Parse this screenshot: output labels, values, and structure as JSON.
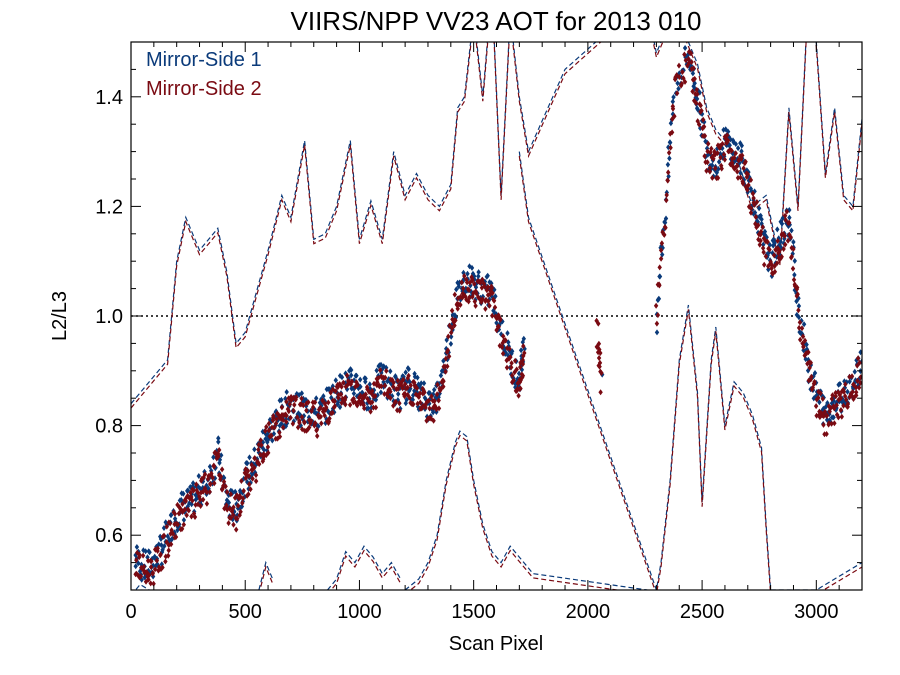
{
  "chart_data": {
    "type": "scatter",
    "title": "VIIRS/NPP VV23 AOT for 2013 010",
    "xlabel": "Scan Pixel",
    "ylabel": "L2/L3",
    "xlim": [
      0,
      3200
    ],
    "ylim": [
      0.5,
      1.5
    ],
    "x_ticks": [
      0,
      500,
      1000,
      1500,
      2000,
      2500,
      3000
    ],
    "y_ticks": [
      0.6,
      0.8,
      1.0,
      1.2,
      1.4
    ],
    "x_tick_labels": [
      "0",
      "500",
      "1000",
      "1500",
      "2000",
      "2500",
      "3000"
    ],
    "y_tick_labels": [
      "0.6",
      "0.8",
      "1.0",
      "1.2",
      "1.4"
    ],
    "reference_line": {
      "y": 1.0,
      "style": "dotted"
    },
    "legend_position": "top-left",
    "grid": false,
    "series": [
      {
        "name": "Mirror-Side 1",
        "color": "#0a3a7a",
        "points": [
          [
            20,
            0.56
          ],
          [
            60,
            0.54
          ],
          [
            100,
            0.55
          ],
          [
            140,
            0.58
          ],
          [
            180,
            0.62
          ],
          [
            220,
            0.65
          ],
          [
            260,
            0.66
          ],
          [
            300,
            0.68
          ],
          [
            340,
            0.7
          ],
          [
            380,
            0.75
          ],
          [
            420,
            0.66
          ],
          [
            460,
            0.65
          ],
          [
            500,
            0.7
          ],
          [
            540,
            0.73
          ],
          [
            580,
            0.77
          ],
          [
            620,
            0.8
          ],
          [
            660,
            0.82
          ],
          [
            700,
            0.84
          ],
          [
            740,
            0.83
          ],
          [
            780,
            0.83
          ],
          [
            820,
            0.82
          ],
          [
            860,
            0.84
          ],
          [
            900,
            0.86
          ],
          [
            940,
            0.87
          ],
          [
            980,
            0.88
          ],
          [
            1020,
            0.86
          ],
          [
            1060,
            0.86
          ],
          [
            1100,
            0.89
          ],
          [
            1140,
            0.87
          ],
          [
            1180,
            0.86
          ],
          [
            1220,
            0.88
          ],
          [
            1260,
            0.86
          ],
          [
            1300,
            0.84
          ],
          [
            1340,
            0.85
          ],
          [
            1380,
            0.93
          ],
          [
            1420,
            1.02
          ],
          [
            1460,
            1.07
          ],
          [
            1500,
            1.06
          ],
          [
            1540,
            1.05
          ],
          [
            1580,
            1.04
          ],
          [
            1620,
            0.98
          ],
          [
            1660,
            0.92
          ],
          [
            1700,
            0.88
          ],
          [
            1720,
            0.95
          ],
          [
            2060,
            0.9
          ],
          [
            2300,
            1.0
          ],
          [
            2340,
            1.2
          ],
          [
            2380,
            1.42
          ],
          [
            2440,
            1.48
          ],
          [
            2480,
            1.4
          ],
          [
            2520,
            1.3
          ],
          [
            2560,
            1.28
          ],
          [
            2600,
            1.32
          ],
          [
            2640,
            1.3
          ],
          [
            2680,
            1.28
          ],
          [
            2720,
            1.22
          ],
          [
            2760,
            1.15
          ],
          [
            2800,
            1.1
          ],
          [
            2840,
            1.14
          ],
          [
            2880,
            1.18
          ],
          [
            2920,
            1.02
          ],
          [
            2960,
            0.92
          ],
          [
            3000,
            0.86
          ],
          [
            3040,
            0.82
          ],
          [
            3080,
            0.84
          ],
          [
            3120,
            0.86
          ],
          [
            3160,
            0.88
          ],
          [
            3200,
            0.92
          ]
        ]
      },
      {
        "name": "Mirror-Side 2",
        "color": "#7a0a12",
        "points": [
          [
            20,
            0.55
          ],
          [
            60,
            0.53
          ],
          [
            100,
            0.54
          ],
          [
            140,
            0.57
          ],
          [
            180,
            0.61
          ],
          [
            220,
            0.64
          ],
          [
            260,
            0.65
          ],
          [
            300,
            0.67
          ],
          [
            340,
            0.69
          ],
          [
            380,
            0.74
          ],
          [
            420,
            0.65
          ],
          [
            460,
            0.64
          ],
          [
            500,
            0.69
          ],
          [
            540,
            0.72
          ],
          [
            580,
            0.76
          ],
          [
            620,
            0.79
          ],
          [
            660,
            0.81
          ],
          [
            700,
            0.83
          ],
          [
            740,
            0.82
          ],
          [
            780,
            0.82
          ],
          [
            820,
            0.81
          ],
          [
            860,
            0.83
          ],
          [
            900,
            0.85
          ],
          [
            940,
            0.86
          ],
          [
            980,
            0.87
          ],
          [
            1020,
            0.85
          ],
          [
            1060,
            0.85
          ],
          [
            1100,
            0.88
          ],
          [
            1140,
            0.86
          ],
          [
            1180,
            0.85
          ],
          [
            1220,
            0.87
          ],
          [
            1260,
            0.85
          ],
          [
            1300,
            0.83
          ],
          [
            1340,
            0.84
          ],
          [
            1380,
            0.92
          ],
          [
            1420,
            1.01
          ],
          [
            1460,
            1.06
          ],
          [
            1500,
            1.05
          ],
          [
            1540,
            1.04
          ],
          [
            1580,
            1.03
          ],
          [
            1620,
            0.97
          ],
          [
            1660,
            0.91
          ],
          [
            1700,
            0.87
          ],
          [
            1720,
            0.94
          ],
          [
            2040,
            0.97
          ],
          [
            2060,
            0.88
          ],
          [
            2300,
            0.99
          ],
          [
            2340,
            1.19
          ],
          [
            2380,
            1.41
          ],
          [
            2440,
            1.47
          ],
          [
            2480,
            1.39
          ],
          [
            2520,
            1.29
          ],
          [
            2560,
            1.27
          ],
          [
            2600,
            1.31
          ],
          [
            2640,
            1.29
          ],
          [
            2680,
            1.27
          ],
          [
            2720,
            1.21
          ],
          [
            2760,
            1.14
          ],
          [
            2800,
            1.09
          ],
          [
            2840,
            1.13
          ],
          [
            2880,
            1.17
          ],
          [
            2920,
            1.01
          ],
          [
            2960,
            0.91
          ],
          [
            3000,
            0.85
          ],
          [
            3040,
            0.81
          ],
          [
            3080,
            0.83
          ],
          [
            3120,
            0.85
          ],
          [
            3160,
            0.87
          ],
          [
            3200,
            0.91
          ]
        ]
      }
    ],
    "envelope_lines": [
      {
        "name": "upper",
        "x": [
          0,
          80,
          160,
          200,
          240,
          300,
          340,
          380,
          420,
          460,
          500,
          560,
          600,
          660,
          700,
          760,
          800,
          850,
          900,
          960,
          1000,
          1050,
          1100,
          1150,
          1200,
          1250,
          1300,
          1350,
          1400,
          1430,
          1460,
          1500,
          1540,
          1580,
          1620,
          1660,
          1700,
          1740,
          1900,
          2250,
          2300,
          2380,
          2440,
          2480,
          2520,
          2560,
          2600,
          2660,
          2720,
          2780,
          2840,
          2880,
          2920,
          2960,
          3000,
          3040,
          3080,
          3120,
          3160,
          3200
        ],
        "y": [
          0.84,
          0.88,
          0.92,
          1.1,
          1.18,
          1.12,
          1.14,
          1.16,
          1.08,
          0.95,
          0.97,
          1.06,
          1.12,
          1.22,
          1.18,
          1.32,
          1.14,
          1.15,
          1.2,
          1.32,
          1.14,
          1.21,
          1.14,
          1.3,
          1.22,
          1.26,
          1.22,
          1.2,
          1.24,
          1.38,
          1.4,
          1.55,
          1.4,
          1.6,
          1.22,
          1.55,
          1.4,
          1.3,
          1.45,
          1.58,
          1.48,
          1.56,
          1.5,
          1.46,
          1.38,
          1.34,
          1.32,
          1.28,
          1.2,
          1.22,
          1.1,
          1.38,
          1.2,
          1.55,
          1.5,
          1.26,
          1.38,
          1.22,
          1.2,
          1.36
        ]
      },
      {
        "name": "lower",
        "x": [
          1700,
          1740,
          2300,
          2320,
          2360,
          2400,
          2440,
          2480,
          2500,
          2540,
          2560,
          2600,
          2640,
          2680,
          2720,
          2760,
          2780,
          2800,
          2900,
          3000,
          3200
        ],
        "y": [
          1.3,
          1.18,
          0.5,
          0.55,
          0.7,
          0.92,
          1.02,
          0.86,
          0.66,
          0.92,
          0.98,
          0.8,
          0.88,
          0.86,
          0.82,
          0.76,
          0.62,
          0.5,
          0.5,
          0.5,
          0.55
        ]
      },
      {
        "name": "bottom",
        "x": [
          1200,
          1260,
          1300,
          1340,
          1380,
          1420,
          1440,
          1470,
          1500,
          1540,
          1580,
          1620,
          1660,
          1700,
          1720,
          1760,
          2260
        ],
        "y": [
          0.5,
          0.52,
          0.55,
          0.6,
          0.7,
          0.77,
          0.79,
          0.78,
          0.7,
          0.62,
          0.57,
          0.55,
          0.58,
          0.56,
          0.55,
          0.53,
          0.5
        ]
      }
    ],
    "bottom_segments": [
      {
        "x": [
          0,
          40,
          80
        ],
        "y": [
          0.49,
          0.51,
          0.5
        ]
      },
      {
        "x": [
          560,
          590,
          620
        ],
        "y": [
          0.5,
          0.55,
          0.52
        ]
      },
      {
        "x": [
          860,
          900,
          940,
          980,
          1020,
          1060,
          1100,
          1140,
          1180
        ],
        "y": [
          0.5,
          0.52,
          0.57,
          0.55,
          0.58,
          0.56,
          0.53,
          0.55,
          0.52
        ]
      }
    ]
  }
}
